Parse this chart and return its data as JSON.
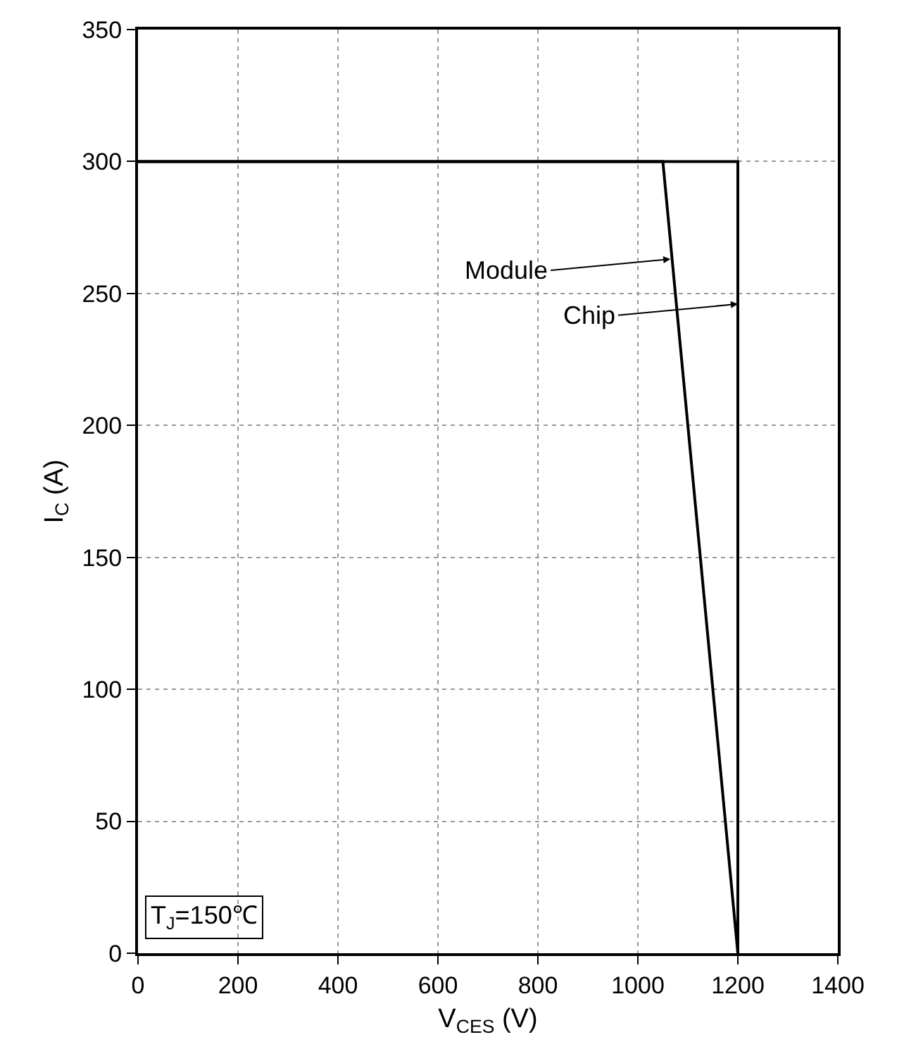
{
  "chart_data": {
    "type": "line",
    "xlabel": "V$_{CES}$ (V)",
    "ylabel": "I$_{C}$ (A)",
    "xlim": [
      0,
      1400
    ],
    "xticks": [
      0,
      200,
      400,
      600,
      800,
      1000,
      1200,
      1400
    ],
    "ylim": [
      0,
      350
    ],
    "yticks": [
      0,
      50,
      100,
      150,
      200,
      250,
      300,
      350
    ],
    "grid": true,
    "line_style": "solid",
    "marker": "none",
    "series": [
      {
        "color": "#000000",
        "x": [
          0,
          1050,
          1200
        ],
        "values": [
          300,
          300,
          0
        ]
      },
      {
        "color": "#000000",
        "x": [
          0,
          1200,
          1200
        ],
        "values": [
          300,
          300,
          0
        ]
      }
    ],
    "annotations": [
      {
        "text": "Module",
        "x": 1065,
        "y": 263
      },
      {
        "text": "Chip",
        "x": 1200,
        "y": 246
      },
      "T$_{J}$=150℃"
    ]
  }
}
